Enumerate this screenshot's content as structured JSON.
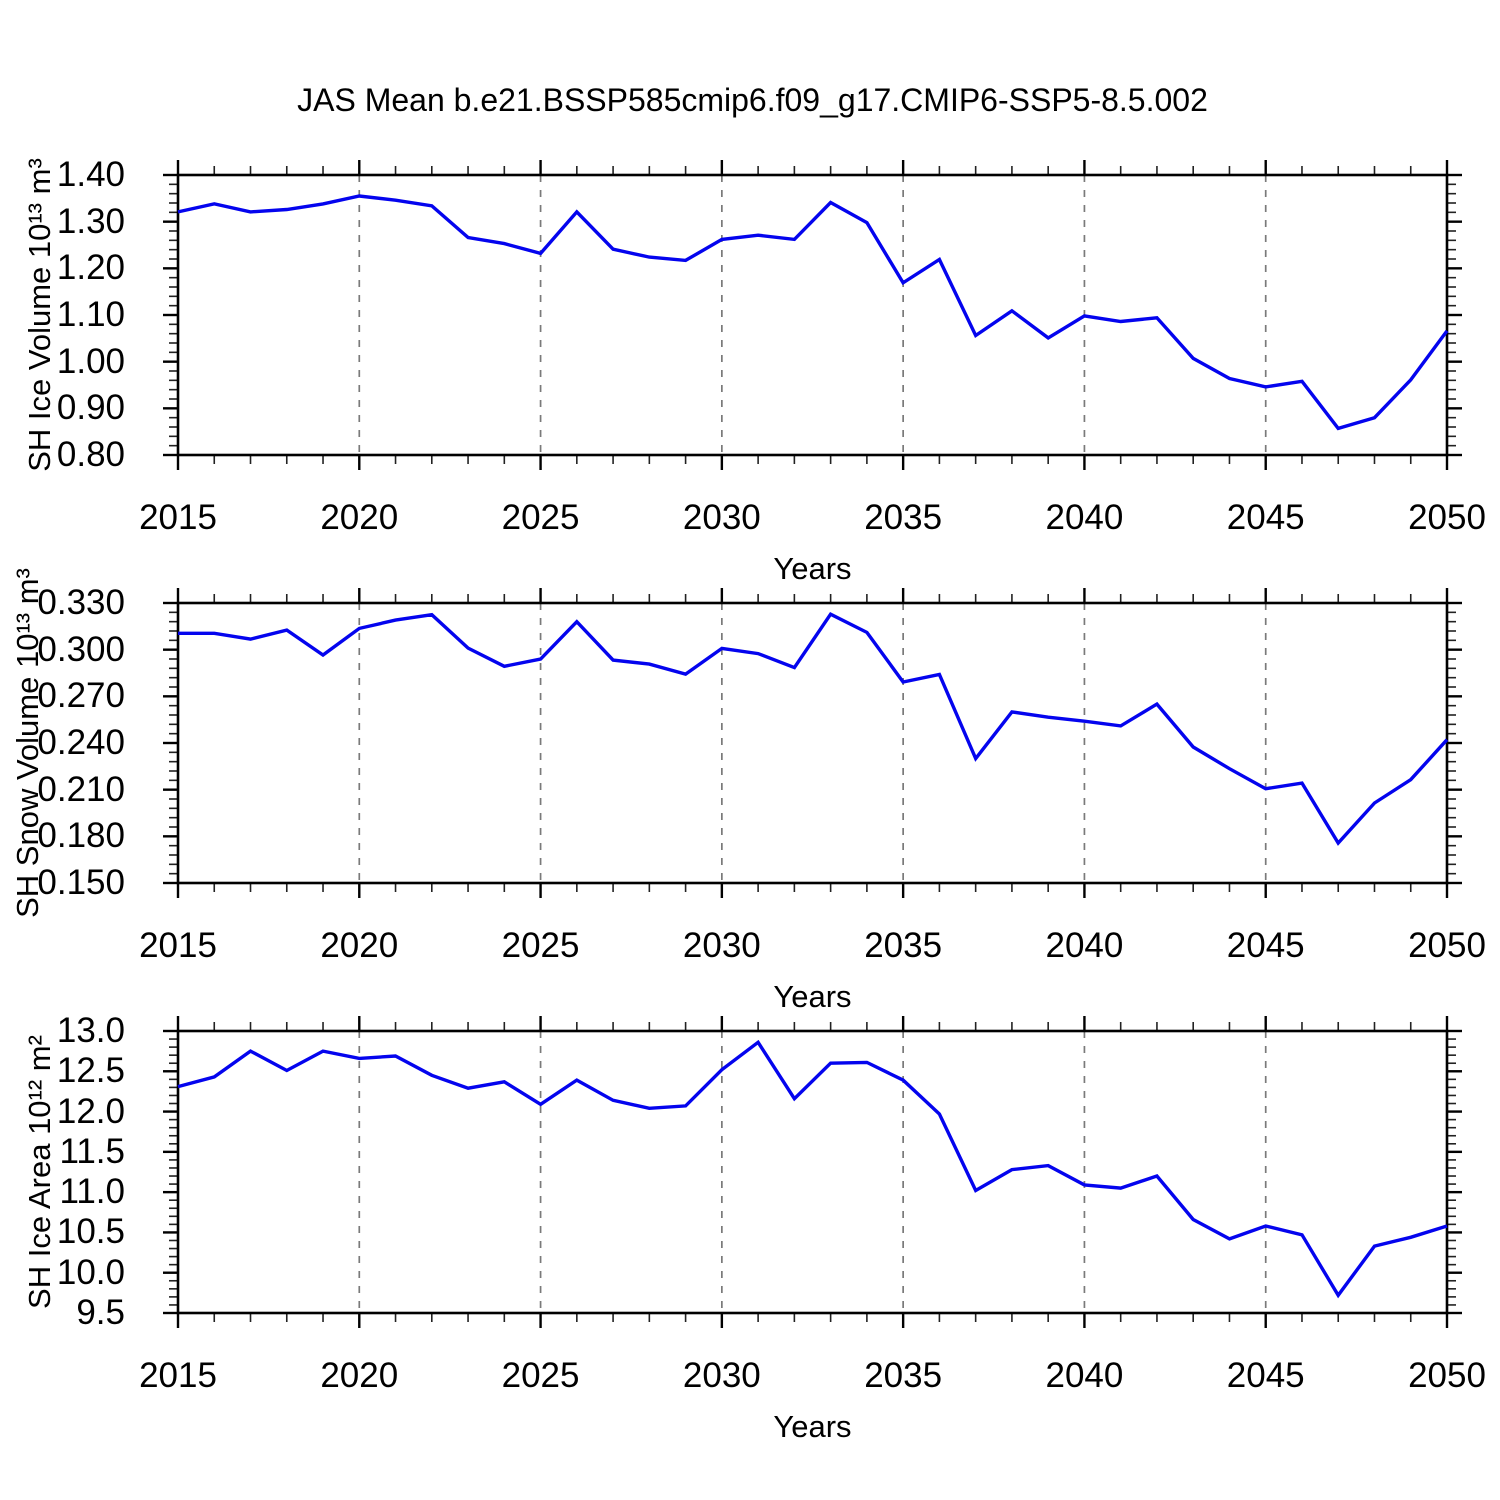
{
  "title": "JAS Mean b.e21.BSSP585cmip6.f09_g17.CMIP6-SSP5-8.5.002",
  "line_color": "#0404ee",
  "grid_color": "#7a7a7a",
  "chart_data": [
    {
      "type": "line",
      "ylabel": "SH Ice Volume 10¹³ m³",
      "xlabel": "Years",
      "xlim": [
        2015,
        2050
      ],
      "ylim": [
        0.8,
        1.4
      ],
      "grid_x": [
        2020,
        2025,
        2030,
        2035,
        2040,
        2045
      ],
      "x_ticks": [
        {
          "value": 2015,
          "label": "2015"
        },
        {
          "value": 2020,
          "label": "2020"
        },
        {
          "value": 2025,
          "label": "2025"
        },
        {
          "value": 2030,
          "label": "2030"
        },
        {
          "value": 2035,
          "label": "2035"
        },
        {
          "value": 2040,
          "label": "2040"
        },
        {
          "value": 2045,
          "label": "2045"
        },
        {
          "value": 2050,
          "label": "2050"
        }
      ],
      "y_ticks": [
        {
          "value": 0.8,
          "label": "0.80"
        },
        {
          "value": 0.9,
          "label": "0.90"
        },
        {
          "value": 1.0,
          "label": "1.00"
        },
        {
          "value": 1.1,
          "label": "1.10"
        },
        {
          "value": 1.2,
          "label": "1.20"
        },
        {
          "value": 1.3,
          "label": "1.30"
        },
        {
          "value": 1.4,
          "label": "1.40"
        }
      ],
      "x": [
        2015,
        2016,
        2017,
        2018,
        2019,
        2020,
        2021,
        2022,
        2023,
        2024,
        2025,
        2026,
        2027,
        2028,
        2029,
        2030,
        2031,
        2032,
        2033,
        2034,
        2035,
        2036,
        2037,
        2038,
        2039,
        2040,
        2041,
        2042,
        2043,
        2044,
        2045,
        2046,
        2047,
        2048,
        2049,
        2050
      ],
      "values": [
        1.321,
        1.338,
        1.321,
        1.326,
        1.338,
        1.355,
        1.346,
        1.334,
        1.266,
        1.253,
        1.232,
        1.321,
        1.241,
        1.224,
        1.217,
        1.262,
        1.271,
        1.262,
        1.341,
        1.298,
        1.169,
        1.219,
        1.056,
        1.109,
        1.051,
        1.098,
        1.086,
        1.094,
        1.007,
        0.964,
        0.946,
        0.958,
        0.857,
        0.88,
        0.961,
        1.066
      ]
    },
    {
      "type": "line",
      "ylabel": "SH Snow Volume 10¹³ m³",
      "xlabel": "Years",
      "xlim": [
        2015,
        2050
      ],
      "ylim": [
        0.15,
        0.33
      ],
      "grid_x": [
        2020,
        2025,
        2030,
        2035,
        2040,
        2045
      ],
      "x_ticks": [
        {
          "value": 2015,
          "label": "2015"
        },
        {
          "value": 2020,
          "label": "2020"
        },
        {
          "value": 2025,
          "label": "2025"
        },
        {
          "value": 2030,
          "label": "2030"
        },
        {
          "value": 2035,
          "label": "2035"
        },
        {
          "value": 2040,
          "label": "2040"
        },
        {
          "value": 2045,
          "label": "2045"
        },
        {
          "value": 2050,
          "label": "2050"
        }
      ],
      "y_ticks": [
        {
          "value": 0.15,
          "label": "0.150"
        },
        {
          "value": 0.18,
          "label": "0.180"
        },
        {
          "value": 0.21,
          "label": "0.210"
        },
        {
          "value": 0.24,
          "label": "0.240"
        },
        {
          "value": 0.27,
          "label": "0.270"
        },
        {
          "value": 0.3,
          "label": "0.300"
        },
        {
          "value": 0.33,
          "label": "0.330"
        }
      ],
      "x": [
        2015,
        2016,
        2017,
        2018,
        2019,
        2020,
        2021,
        2022,
        2023,
        2024,
        2025,
        2026,
        2027,
        2028,
        2029,
        2030,
        2031,
        2032,
        2033,
        2034,
        2035,
        2036,
        2037,
        2038,
        2039,
        2040,
        2041,
        2042,
        2043,
        2044,
        2045,
        2046,
        2047,
        2048,
        2049,
        2050
      ],
      "values": [
        0.3105,
        0.3105,
        0.3068,
        0.3126,
        0.2966,
        0.3137,
        0.319,
        0.3225,
        0.301,
        0.2893,
        0.294,
        0.318,
        0.2933,
        0.2907,
        0.2843,
        0.3008,
        0.2975,
        0.2885,
        0.3228,
        0.3111,
        0.2792,
        0.2841,
        0.23,
        0.26,
        0.2566,
        0.254,
        0.251,
        0.265,
        0.2374,
        0.2235,
        0.2106,
        0.2142,
        0.1757,
        0.2014,
        0.2164,
        0.2421
      ]
    },
    {
      "type": "line",
      "ylabel": "SH Ice Area 10¹² m²",
      "xlabel": "Years",
      "xlim": [
        2015,
        2050
      ],
      "ylim": [
        9.5,
        13.0
      ],
      "grid_x": [
        2020,
        2025,
        2030,
        2035,
        2040,
        2045
      ],
      "x_ticks": [
        {
          "value": 2015,
          "label": "2015"
        },
        {
          "value": 2020,
          "label": "2020"
        },
        {
          "value": 2025,
          "label": "2025"
        },
        {
          "value": 2030,
          "label": "2030"
        },
        {
          "value": 2035,
          "label": "2035"
        },
        {
          "value": 2040,
          "label": "2040"
        },
        {
          "value": 2045,
          "label": "2045"
        },
        {
          "value": 2050,
          "label": "2050"
        }
      ],
      "y_ticks": [
        {
          "value": 9.5,
          "label": "9.5"
        },
        {
          "value": 10.0,
          "label": "10.0"
        },
        {
          "value": 10.5,
          "label": "10.5"
        },
        {
          "value": 11.0,
          "label": "11.0"
        },
        {
          "value": 11.5,
          "label": "11.5"
        },
        {
          "value": 12.0,
          "label": "12.0"
        },
        {
          "value": 12.5,
          "label": "12.5"
        },
        {
          "value": 13.0,
          "label": "13.0"
        }
      ],
      "x": [
        2015,
        2016,
        2017,
        2018,
        2019,
        2020,
        2021,
        2022,
        2023,
        2024,
        2025,
        2026,
        2027,
        2028,
        2029,
        2030,
        2031,
        2032,
        2033,
        2034,
        2035,
        2036,
        2037,
        2038,
        2039,
        2040,
        2041,
        2042,
        2043,
        2044,
        2045,
        2046,
        2047,
        2048,
        2049,
        2050
      ],
      "values": [
        12.31,
        12.43,
        12.75,
        12.51,
        12.75,
        12.66,
        12.69,
        12.45,
        12.29,
        12.37,
        12.09,
        12.39,
        12.14,
        12.04,
        12.07,
        12.52,
        12.86,
        12.16,
        12.6,
        12.61,
        12.39,
        11.97,
        11.02,
        11.28,
        11.33,
        11.09,
        11.05,
        11.2,
        10.66,
        10.42,
        10.58,
        10.47,
        9.72,
        10.33,
        10.44,
        10.58
      ]
    }
  ]
}
